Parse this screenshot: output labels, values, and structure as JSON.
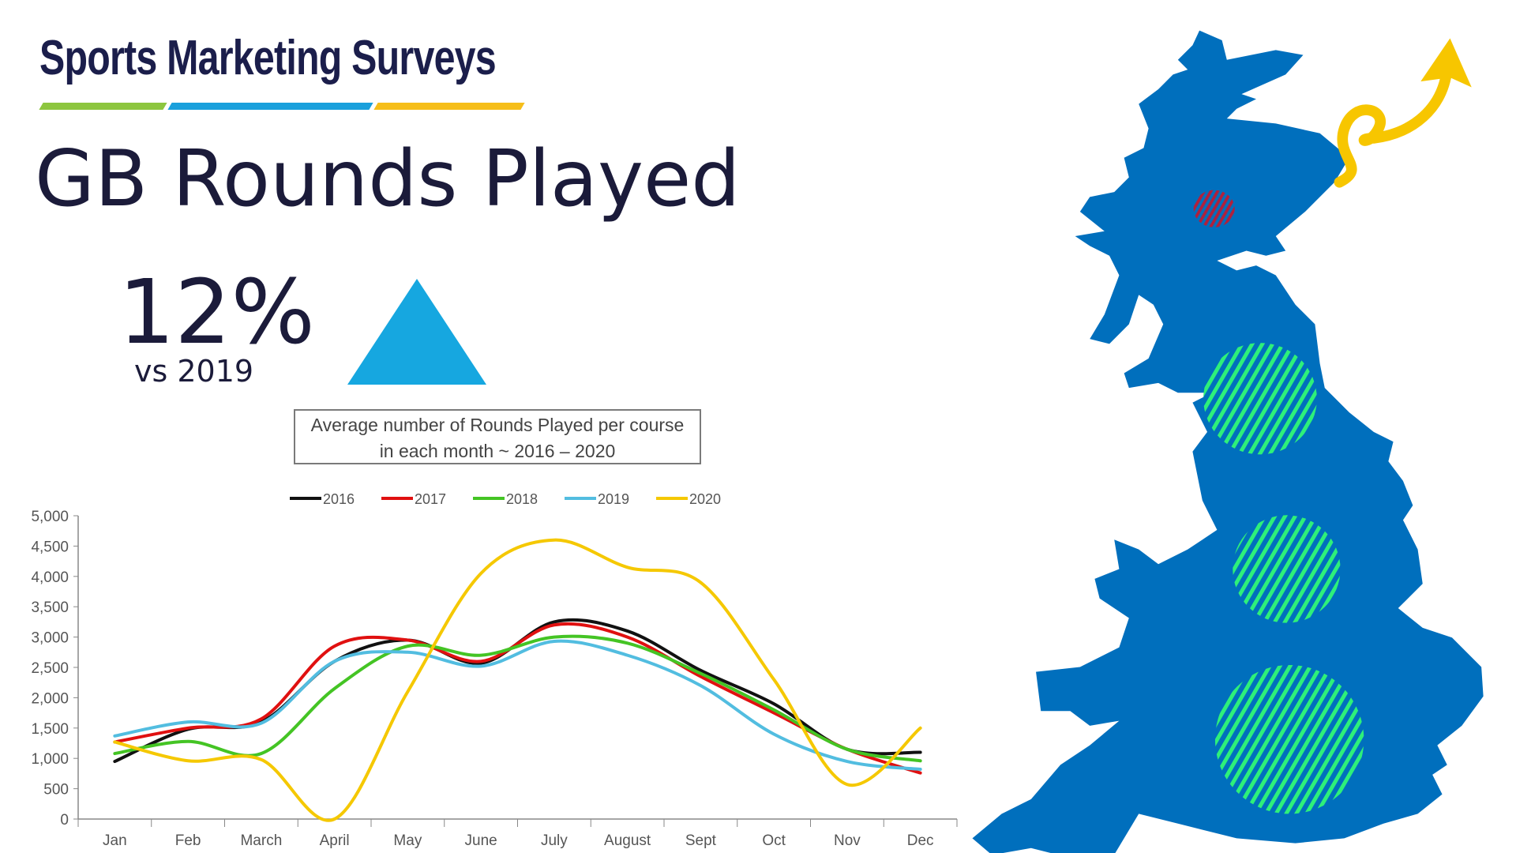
{
  "brand": {
    "name": "Sports Marketing Surveys",
    "colors": [
      "#8dc63f",
      "#1aa0dc",
      "#f6be1a"
    ]
  },
  "header": {
    "title": "GB Rounds Played"
  },
  "kpi": {
    "value": "12%",
    "comparison": "vs 2019",
    "direction": "up",
    "arrow_color": "#16a7e0"
  },
  "map": {
    "fill": "#006fbd",
    "hotspot_color": "#2ef07a",
    "marker_color": "#b0203c",
    "arrow_color": "#f7c600"
  },
  "chart_data": {
    "type": "line",
    "title_line1": "Average number of Rounds Played per course",
    "title_line2": "in each month ~ 2016 – 2020",
    "categories": [
      "Jan",
      "Feb",
      "March",
      "April",
      "May",
      "June",
      "July",
      "August",
      "Sept",
      "Oct",
      "Nov",
      "Dec"
    ],
    "ylim": [
      0,
      5000
    ],
    "yticks": [
      "0",
      "500",
      "1,000",
      "1,500",
      "2,000",
      "2,500",
      "3,000",
      "3,500",
      "4,000",
      "4,500",
      "5,000"
    ],
    "ytick_values": [
      0,
      500,
      1000,
      1500,
      2000,
      2500,
      3000,
      3500,
      4000,
      4500,
      5000
    ],
    "legend_position": "top",
    "series": [
      {
        "name": "2016",
        "color": "#111111",
        "values": [
          950,
          1480,
          1600,
          2600,
          2950,
          2570,
          3250,
          3100,
          2450,
          1900,
          1150,
          1100
        ]
      },
      {
        "name": "2017",
        "color": "#e01010",
        "values": [
          1270,
          1500,
          1650,
          2850,
          2950,
          2600,
          3200,
          3000,
          2350,
          1750,
          1150,
          760
        ]
      },
      {
        "name": "2018",
        "color": "#44c424",
        "values": [
          1080,
          1280,
          1080,
          2150,
          2850,
          2700,
          3000,
          2900,
          2400,
          1800,
          1150,
          960
        ]
      },
      {
        "name": "2019",
        "color": "#52bde0",
        "values": [
          1370,
          1600,
          1580,
          2600,
          2750,
          2520,
          2930,
          2700,
          2200,
          1400,
          950,
          820
        ]
      },
      {
        "name": "2020",
        "color": "#f5c800",
        "values": [
          1270,
          960,
          980,
          0,
          2100,
          4050,
          4600,
          4150,
          3900,
          2300,
          570,
          1500
        ]
      }
    ]
  }
}
